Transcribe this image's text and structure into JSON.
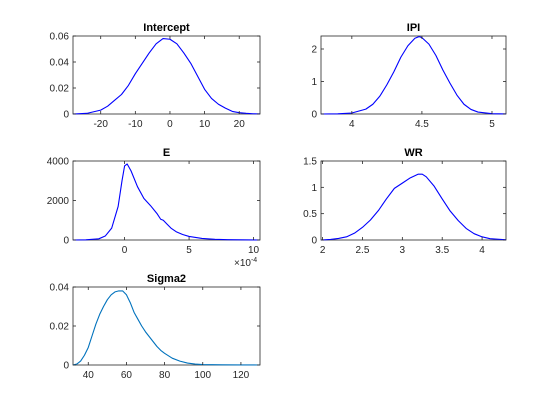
{
  "colors": {
    "blue": "#0000ff",
    "teal": "#0072bd",
    "axis": "#262626"
  },
  "chart_data": [
    {
      "id": "intercept",
      "type": "line",
      "title": "Intercept",
      "xlim": [
        -28,
        26
      ],
      "ylim": [
        0,
        0.06
      ],
      "xticks": [
        -20,
        -10,
        0,
        10,
        20
      ],
      "xtick_labels": [
        "-20",
        "-10",
        "0",
        "10",
        "20"
      ],
      "yticks": [
        0,
        0.02,
        0.04,
        0.06
      ],
      "ytick_labels": [
        "0",
        "0.02",
        "0.04",
        "0.06"
      ],
      "color": "#0000ff",
      "x": [
        -28,
        -24,
        -20,
        -18,
        -16,
        -14,
        -12,
        -10,
        -8,
        -6,
        -4,
        -2,
        0,
        2,
        4,
        6,
        8,
        10,
        12,
        14,
        16,
        18,
        20,
        22,
        24,
        26
      ],
      "y": [
        0,
        0.0005,
        0.003,
        0.006,
        0.0105,
        0.015,
        0.022,
        0.031,
        0.039,
        0.047,
        0.054,
        0.058,
        0.0575,
        0.054,
        0.047,
        0.039,
        0.029,
        0.019,
        0.012,
        0.0075,
        0.0045,
        0.002,
        0.001,
        0.0005,
        0.0002,
        0.0001
      ]
    },
    {
      "id": "ipi",
      "type": "line",
      "title": "IPI",
      "xlim": [
        3.78,
        5.1
      ],
      "ylim": [
        0,
        2.4
      ],
      "xticks": [
        4,
        4.5,
        5
      ],
      "xtick_labels": [
        "4",
        "4.5",
        "5"
      ],
      "yticks": [
        0,
        1,
        2
      ],
      "ytick_labels": [
        "0",
        "1",
        "2"
      ],
      "color": "#0000ff",
      "x": [
        3.78,
        3.9,
        4.0,
        4.1,
        4.15,
        4.2,
        4.25,
        4.3,
        4.35,
        4.4,
        4.45,
        4.48,
        4.5,
        4.55,
        4.6,
        4.65,
        4.7,
        4.75,
        4.8,
        4.85,
        4.9,
        5.0,
        5.1
      ],
      "y": [
        0,
        0.005,
        0.03,
        0.15,
        0.3,
        0.55,
        0.9,
        1.3,
        1.75,
        2.1,
        2.33,
        2.38,
        2.35,
        2.15,
        1.8,
        1.35,
        0.95,
        0.58,
        0.3,
        0.14,
        0.06,
        0.01,
        0.003
      ]
    },
    {
      "id": "e",
      "type": "line",
      "title": "E",
      "xlim": [
        -4,
        10.5
      ],
      "ylim": [
        0,
        4000
      ],
      "xticks": [
        0,
        5,
        10
      ],
      "xtick_labels": [
        "0",
        "5",
        "10"
      ],
      "yticks": [
        0,
        2000,
        4000
      ],
      "ytick_labels": [
        "0",
        "2000",
        "4000"
      ],
      "exponent_base": "×10",
      "exponent_power": "-4",
      "color": "#0000ff",
      "x": [
        -4,
        -3,
        -2,
        -1.5,
        -1,
        -0.5,
        -0.2,
        0,
        0.2,
        0.5,
        1,
        1.5,
        2,
        2.5,
        2.8,
        3,
        3.3,
        3.6,
        4,
        4.5,
        5,
        6,
        7,
        8,
        9,
        10,
        10.5
      ],
      "y": [
        0,
        10,
        60,
        200,
        600,
        1700,
        3000,
        3750,
        3850,
        3500,
        2700,
        2100,
        1750,
        1350,
        1050,
        1000,
        800,
        600,
        420,
        280,
        180,
        80,
        35,
        15,
        8,
        3,
        0
      ]
    },
    {
      "id": "wr",
      "type": "line",
      "title": "WR",
      "xlim": [
        1.98,
        4.3
      ],
      "ylim": [
        0,
        1.5
      ],
      "xticks": [
        2,
        2.5,
        3,
        3.5,
        4
      ],
      "xtick_labels": [
        "2",
        "2.5",
        "3",
        "3.5",
        "4"
      ],
      "yticks": [
        0,
        0.5,
        1,
        1.5
      ],
      "ytick_labels": [
        "0",
        "0.5",
        "1",
        "1.5"
      ],
      "color": "#0000ff",
      "x": [
        1.98,
        2.1,
        2.2,
        2.3,
        2.4,
        2.5,
        2.6,
        2.7,
        2.8,
        2.9,
        3.0,
        3.1,
        3.2,
        3.25,
        3.3,
        3.4,
        3.5,
        3.6,
        3.7,
        3.8,
        3.9,
        4.0,
        4.1,
        4.3
      ],
      "y": [
        0,
        0.01,
        0.03,
        0.06,
        0.13,
        0.24,
        0.38,
        0.56,
        0.78,
        0.98,
        1.08,
        1.18,
        1.25,
        1.25,
        1.2,
        1.02,
        0.78,
        0.55,
        0.37,
        0.22,
        0.12,
        0.06,
        0.025,
        0.005
      ]
    },
    {
      "id": "sigma2",
      "type": "line",
      "title": "Sigma2",
      "xlim": [
        32,
        130
      ],
      "ylim": [
        0,
        0.04
      ],
      "xticks": [
        40,
        60,
        80,
        100,
        120
      ],
      "xtick_labels": [
        "40",
        "60",
        "80",
        "100",
        "120"
      ],
      "yticks": [
        0,
        0.02,
        0.04
      ],
      "ytick_labels": [
        "0",
        "0.02",
        "0.04"
      ],
      "color": "#0072bd",
      "x": [
        32,
        34,
        36,
        38,
        40,
        42,
        44,
        46,
        48,
        50,
        52,
        54,
        56,
        58,
        60,
        62,
        64,
        66,
        68,
        70,
        72,
        74,
        76,
        78,
        80,
        84,
        88,
        92,
        96,
        100,
        110,
        120,
        130
      ],
      "y": [
        0,
        0.0005,
        0.002,
        0.005,
        0.009,
        0.015,
        0.021,
        0.026,
        0.03,
        0.0335,
        0.036,
        0.0375,
        0.038,
        0.038,
        0.036,
        0.032,
        0.027,
        0.0235,
        0.02,
        0.017,
        0.0145,
        0.012,
        0.0095,
        0.0075,
        0.006,
        0.0035,
        0.002,
        0.001,
        0.0005,
        0.0002,
        0.0001,
        5e-05,
        0
      ]
    }
  ]
}
